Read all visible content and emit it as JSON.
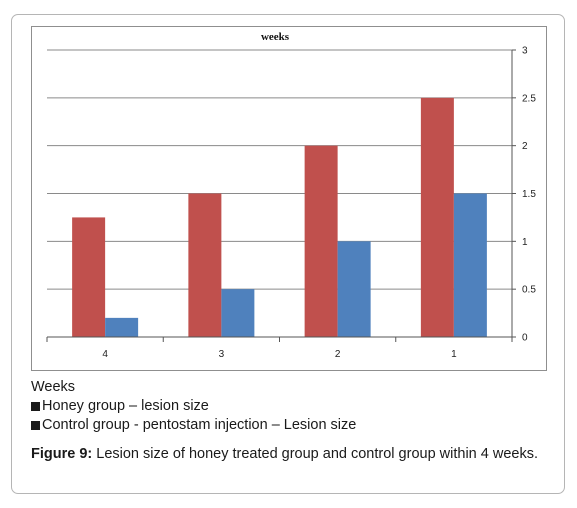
{
  "chart_data": {
    "type": "bar",
    "title": "weeks",
    "categories": [
      "4",
      "3",
      "2",
      "1"
    ],
    "series": [
      {
        "name": "Honey group – lesion size",
        "color": "#c0504d",
        "values": [
          1.25,
          1.5,
          2.0,
          2.5
        ]
      },
      {
        "name": "Control group - pentostam injection – Lesion size",
        "color": "#4f81bd",
        "values": [
          0.2,
          0.5,
          1.0,
          1.5
        ]
      }
    ],
    "ylim": [
      0,
      3
    ],
    "yticks": [
      "0",
      "0.5",
      "1",
      "1.5",
      "2",
      "2.5",
      "3"
    ],
    "y_axis_position": "right",
    "grid": true
  },
  "legend": {
    "heading": "Weeks",
    "items": [
      "Honey group – lesion size",
      "Control group - pentostam injection – Lesion size"
    ]
  },
  "caption": {
    "label": "Figure 9:",
    "text": " Lesion size of honey treated group and control group within 4 weeks."
  }
}
